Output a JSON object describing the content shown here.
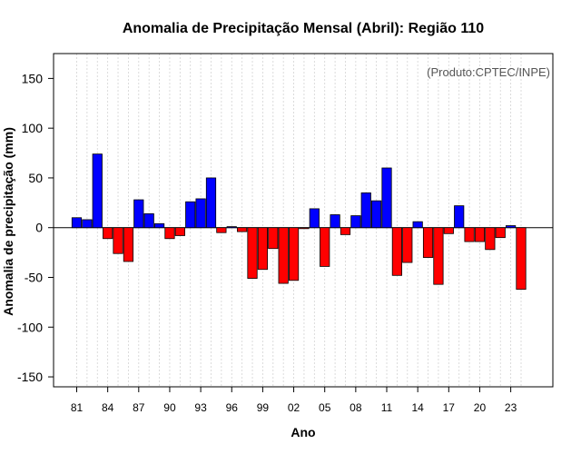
{
  "chart_data": {
    "type": "bar",
    "title": "Anomalia de Precipitação Mensal (Abril): Região 110",
    "xlabel": "Ano",
    "ylabel": "Anomalia de precipitação (mm)",
    "annotation": "(Produto:CPTEC/INPE)",
    "ylim": [
      -160,
      175
    ],
    "yticks": [
      -150,
      -100,
      -50,
      0,
      50,
      100,
      150
    ],
    "grid": true,
    "positive_color": "#0000ff",
    "negative_color": "#ff0000",
    "categories": [
      "1981",
      "1982",
      "1983",
      "1984",
      "1985",
      "1986",
      "1987",
      "1988",
      "1989",
      "1990",
      "1991",
      "1992",
      "1993",
      "1994",
      "1995",
      "1996",
      "1997",
      "1998",
      "1999",
      "2000",
      "2001",
      "2002",
      "2003",
      "2004",
      "2005",
      "2006",
      "2007",
      "2008",
      "2009",
      "2010",
      "2011",
      "2012",
      "2013",
      "2014",
      "2015",
      "2016",
      "2017",
      "2018",
      "2019",
      "2020",
      "2021",
      "2022",
      "2023",
      "2024"
    ],
    "xtick_labels": [
      "81",
      "84",
      "87",
      "90",
      "93",
      "96",
      "99",
      "02",
      "05",
      "08",
      "11",
      "14",
      "17",
      "20",
      "23"
    ],
    "xtick_indices": [
      0,
      3,
      6,
      9,
      12,
      15,
      18,
      21,
      24,
      27,
      30,
      33,
      36,
      39,
      42
    ],
    "values": [
      10,
      8,
      74,
      -11,
      -26,
      -34,
      28,
      14,
      4,
      -11,
      -8,
      26,
      29,
      50,
      -5,
      1,
      -4,
      -51,
      -42,
      -21,
      -56,
      -53,
      -1,
      19,
      -39,
      13,
      -7,
      12,
      35,
      27,
      60,
      -48,
      -35,
      6,
      -30,
      -57,
      -6,
      22,
      -14,
      -14,
      -22,
      -10,
      2,
      -62
    ]
  }
}
